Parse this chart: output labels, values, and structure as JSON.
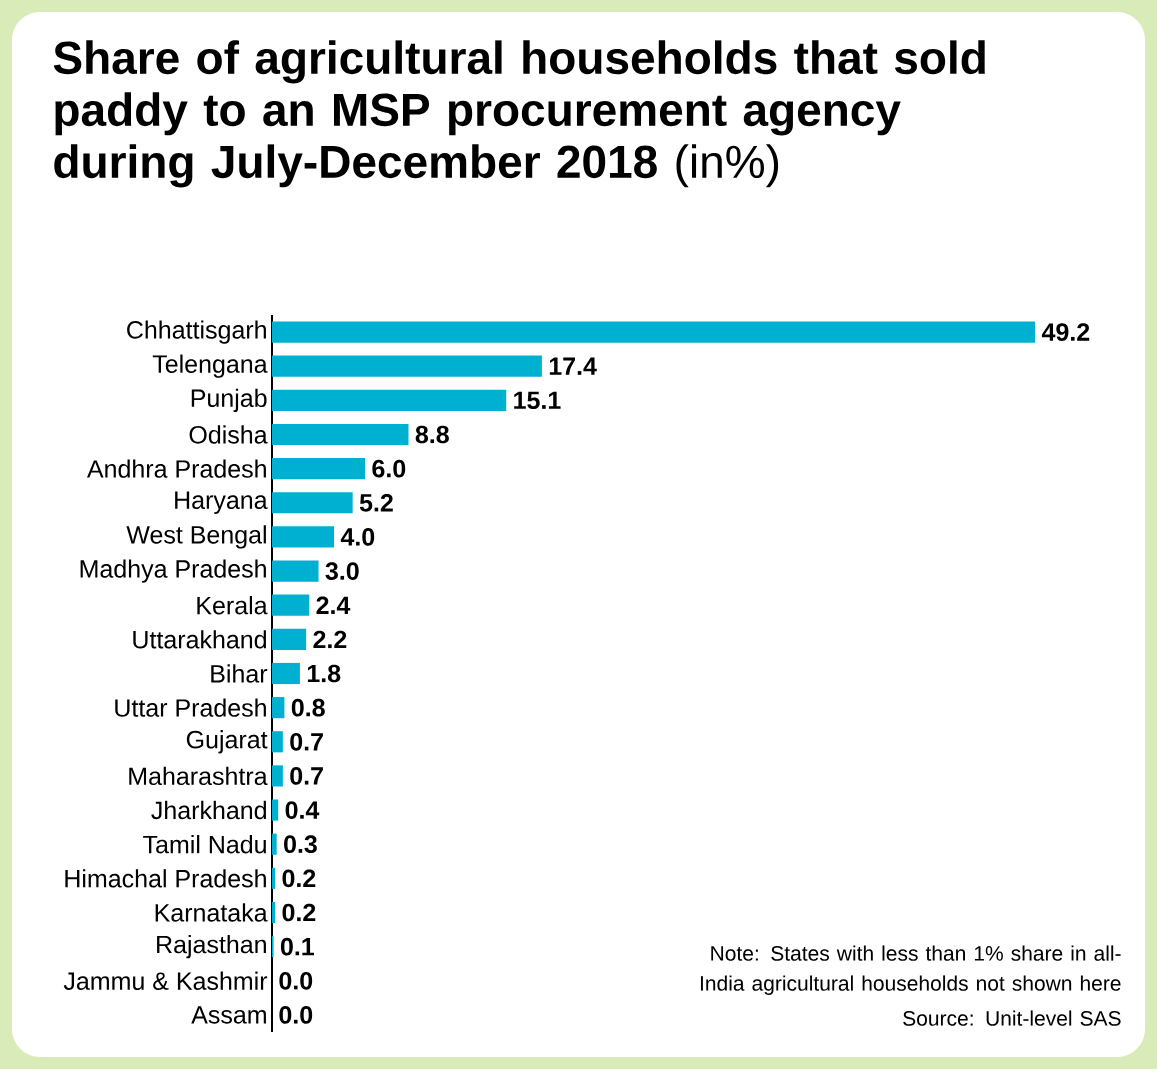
{
  "chart_data": {
    "type": "bar",
    "orientation": "horizontal",
    "relative": false,
    "title": "**Share of agricultural households that sold paddy to an MSP procurement agency during July-December 2018** (in%)",
    "categories": [
      "Chhattisgarh",
      "Telengana",
      "Punjab",
      "Odisha",
      "Andhra Pradesh",
      "Haryana",
      "West Bengal",
      "Madhya Pradesh",
      "Kerala",
      "Uttarakhand",
      "Bihar",
      "Uttar Pradesh",
      "Gujarat",
      "Maharashtra",
      "Jharkhand",
      "Tamil Nadu",
      "Himachal Pradesh",
      "Karnataka",
      "Rajasthan",
      "Jammu & Kashmir",
      "Assam"
    ],
    "values": [
      49.2,
      17.4,
      15.1,
      8.8,
      6.0,
      5.2,
      4.0,
      3.0,
      2.4,
      2.2,
      1.8,
      0.8,
      0.7,
      0.7,
      0.4,
      0.3,
      0.2,
      0.2,
      0.1,
      0.0,
      0.0
    ],
    "color": "#00b0d0",
    "value_labels": [
      "49.2",
      "17.4",
      "15.1",
      "8.8",
      "6.0",
      "5.2",
      "4.0",
      "3.0",
      "2.4",
      "2.2",
      "1.8",
      "0.8",
      "0.7",
      "0.7",
      "0.4",
      "0.3",
      "0.2",
      "0.2",
      "0.1",
      "0.0",
      "0.0"
    ],
    "annotations": [
      "Note: States with less than 1% share in all-India agricultural households not shown here",
      "Source: Unit-level SAS"
    ]
  }
}
